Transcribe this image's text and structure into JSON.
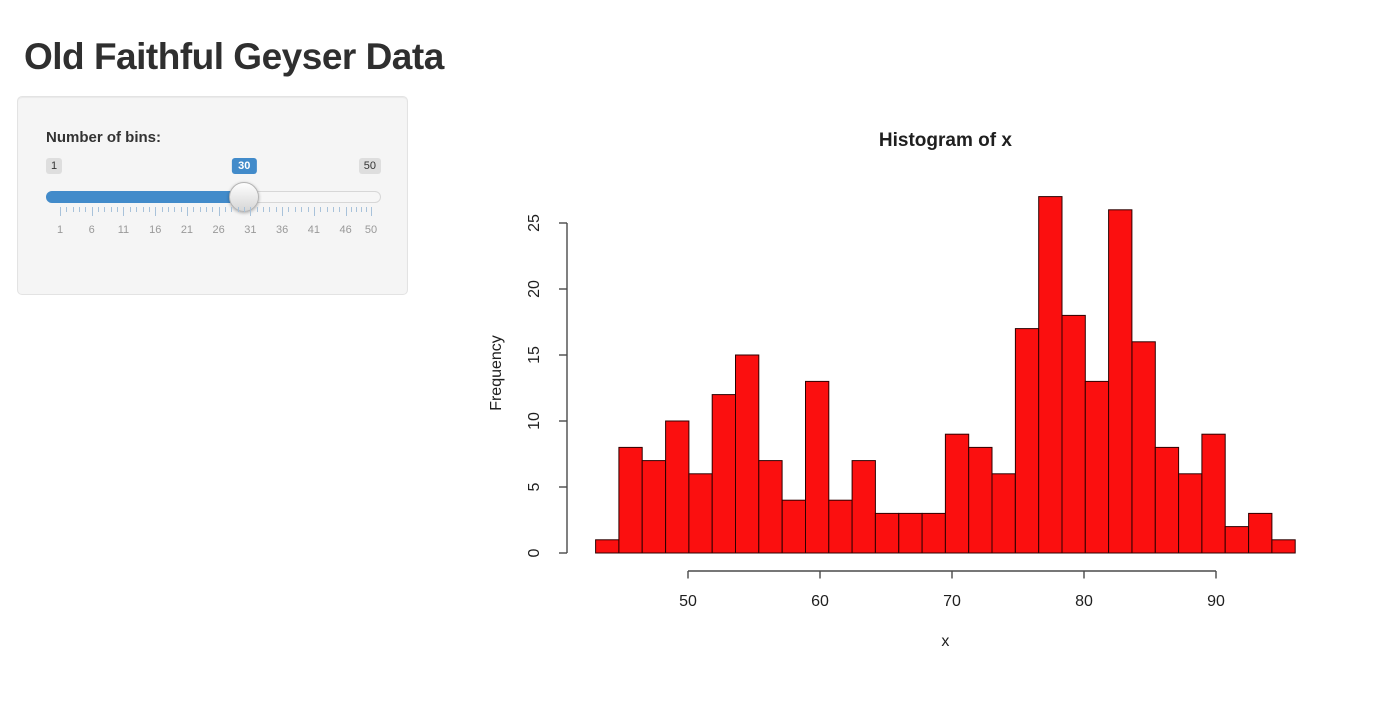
{
  "page": {
    "title": "Old Faithful Geyser Data"
  },
  "sidebar": {
    "bins_label": "Number of bins:",
    "slider": {
      "min": 1,
      "max": 50,
      "value": 30,
      "min_label": "1",
      "max_label": "50",
      "value_label": "30",
      "grid_labels": [
        "1",
        "6",
        "11",
        "16",
        "21",
        "26",
        "31",
        "36",
        "41",
        "46",
        "50"
      ],
      "grid_values": [
        1,
        6,
        11,
        16,
        21,
        26,
        31,
        36,
        41,
        46,
        50
      ],
      "accent_color": "#428bca",
      "grid_tick_color": "#a8c2da"
    }
  },
  "chart_data": {
    "type": "bar",
    "title": "Histogram of x",
    "xlabel": "x",
    "ylabel": "Frequency",
    "bins": {
      "start": 43,
      "end": 96,
      "count": 30
    },
    "counts": [
      1,
      8,
      7,
      10,
      6,
      12,
      15,
      7,
      4,
      13,
      4,
      7,
      3,
      3,
      3,
      9,
      8,
      6,
      17,
      27,
      18,
      13,
      26,
      16,
      8,
      6,
      9,
      2,
      3,
      1
    ],
    "x_ticks": [
      50,
      60,
      70,
      80,
      90
    ],
    "y_ticks": [
      0,
      5,
      10,
      15,
      20,
      25
    ],
    "xlim": [
      43,
      96
    ],
    "ylim": [
      0,
      27
    ],
    "grid": false,
    "legend": "none",
    "bar_fill": "#fb0f0f",
    "bar_border": "#2e0000",
    "axis_color": "#4a4a4a"
  }
}
